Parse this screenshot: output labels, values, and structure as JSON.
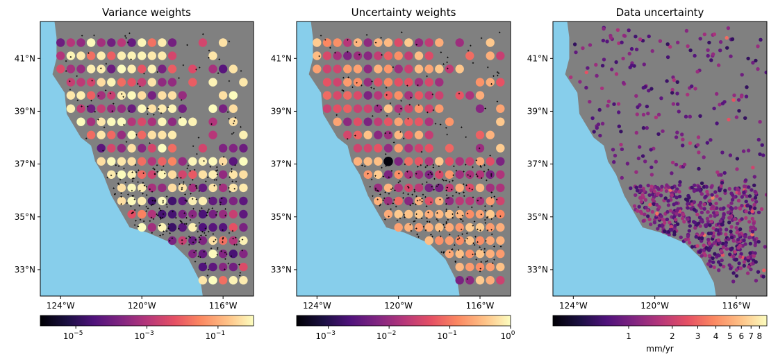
{
  "chart_data": [
    {
      "type": "scatter",
      "title": "Variance weights",
      "map": {
        "lon_range": [
          -125,
          -114.5
        ],
        "lat_range": [
          32,
          42.4
        ],
        "land_color": "#808080",
        "ocean_color": "#87CEEB"
      },
      "xticks": [
        "124°W",
        "120°W",
        "116°W"
      ],
      "yticks": [
        "41°N",
        "39°N",
        "37°N",
        "35°N",
        "33°N"
      ],
      "colormap": "magma",
      "colorbar": {
        "scale": "log",
        "range": [
          1e-06,
          1
        ],
        "ticks": [
          "10",
          "10",
          "10"
        ],
        "tick_exponents": [
          "−5",
          "−3",
          "−1"
        ],
        "label": ""
      },
      "marker_size": "large",
      "station_markers": "black plus markers (+)"
    },
    {
      "type": "scatter",
      "title": "Uncertainty weights",
      "map": {
        "lon_range": [
          -125,
          -114.5
        ],
        "lat_range": [
          32,
          42.4
        ],
        "land_color": "#808080",
        "ocean_color": "#87CEEB"
      },
      "xticks": [
        "124°W",
        "120°W",
        "116°W"
      ],
      "yticks": [
        "41°N",
        "39°N",
        "37°N",
        "35°N",
        "33°N"
      ],
      "colormap": "magma",
      "colorbar": {
        "scale": "log",
        "range": [
          0.0003,
          1
        ],
        "ticks": [
          "10",
          "10",
          "10",
          "10"
        ],
        "tick_exponents": [
          "−3",
          "−2",
          "−1",
          "0"
        ],
        "label": ""
      },
      "marker_size": "large",
      "station_markers": "black plus markers (+)"
    },
    {
      "type": "scatter",
      "title": "Data uncertainty",
      "map": {
        "lon_range": [
          -125,
          -114.5
        ],
        "lat_range": [
          32,
          42.4
        ],
        "land_color": "#808080",
        "ocean_color": "#87CEEB"
      },
      "xticks": [
        "124°W",
        "120°W",
        "116°W"
      ],
      "yticks": [
        "41°N",
        "39°N",
        "37°N",
        "35°N",
        "33°N"
      ],
      "colormap": "magma",
      "colorbar": {
        "scale": "log",
        "range": [
          0.3,
          9
        ],
        "ticks": [
          "1",
          "2",
          "3",
          "4",
          "5",
          "6",
          "7",
          "8"
        ],
        "label": "mm/yr"
      },
      "marker_size": "small"
    }
  ]
}
